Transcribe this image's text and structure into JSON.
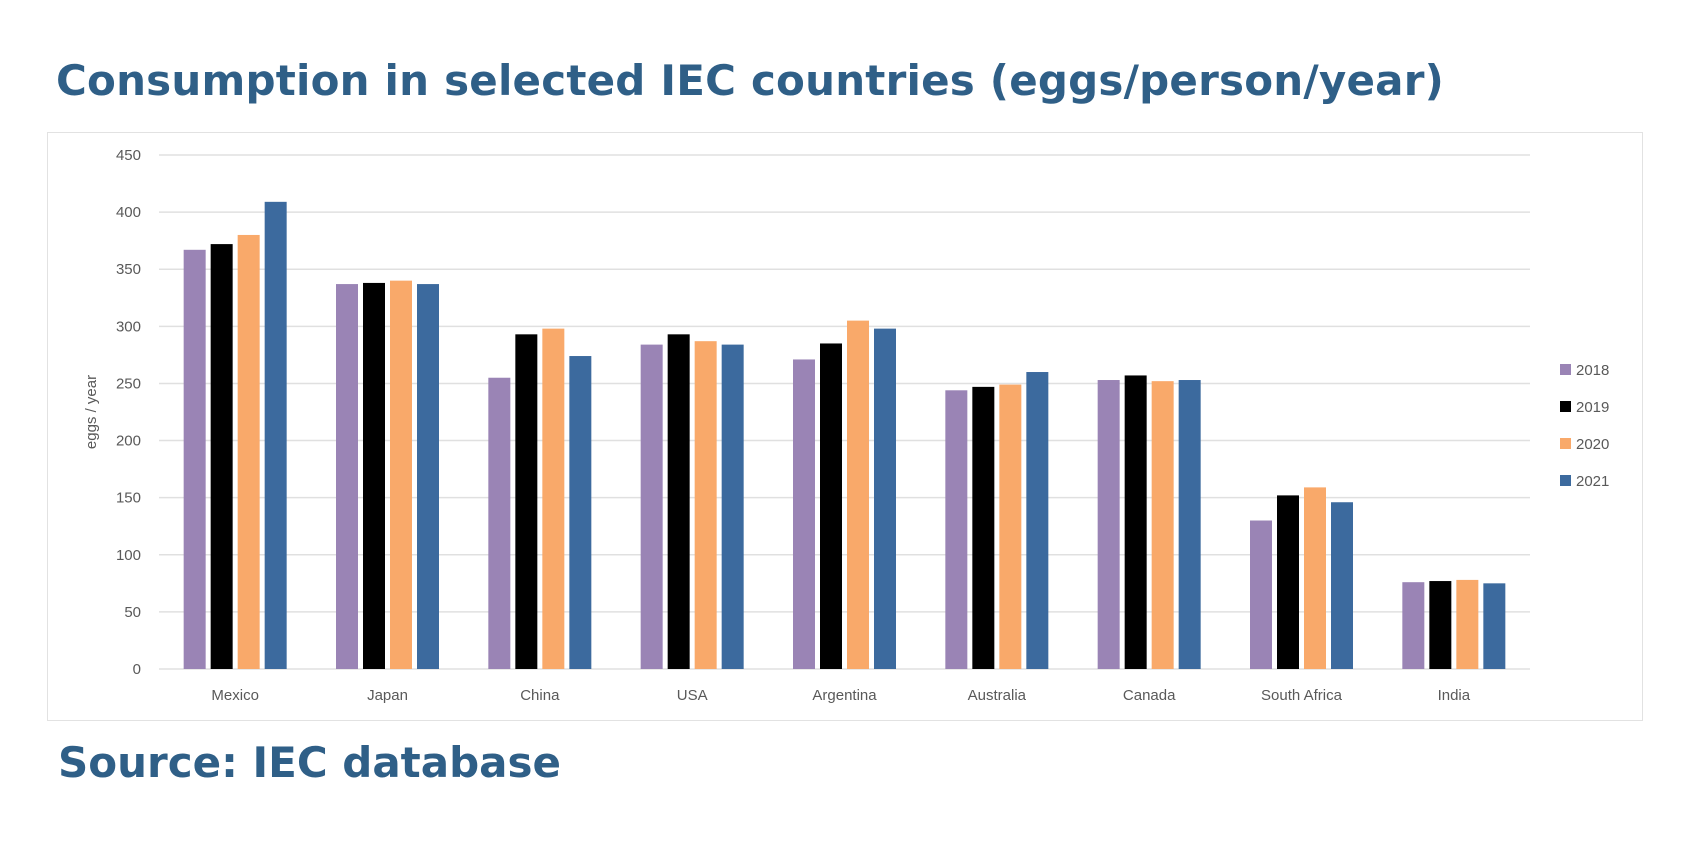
{
  "title": "Consumption in selected IEC countries (eggs/person/year)",
  "source": "Source: IEC database",
  "chart_data": {
    "type": "bar",
    "title": "",
    "xlabel": "",
    "ylabel": "eggs / year",
    "ylim": [
      0,
      450
    ],
    "yticks": [
      "0",
      "50",
      "100",
      "150",
      "200",
      "250",
      "300",
      "350",
      "400",
      "450"
    ],
    "grid": true,
    "legend_placement": "right",
    "categories": [
      "Mexico",
      "Japan",
      "China",
      "USA",
      "Argentina",
      "Australia",
      "Canada",
      "South Africa",
      "India"
    ],
    "series": [
      {
        "name": "2018",
        "color": "#9a84b5",
        "values": [
          367,
          337,
          255,
          284,
          271,
          244,
          253,
          130,
          76
        ]
      },
      {
        "name": "2019",
        "color": "#000000",
        "values": [
          372,
          338,
          293,
          293,
          285,
          247,
          257,
          152,
          77
        ]
      },
      {
        "name": "2020",
        "color": "#f9a96a",
        "values": [
          380,
          340,
          298,
          287,
          305,
          249,
          252,
          159,
          78
        ]
      },
      {
        "name": "2021",
        "color": "#3c6a9e",
        "values": [
          409,
          337,
          274,
          284,
          298,
          260,
          253,
          146,
          75
        ]
      }
    ]
  }
}
